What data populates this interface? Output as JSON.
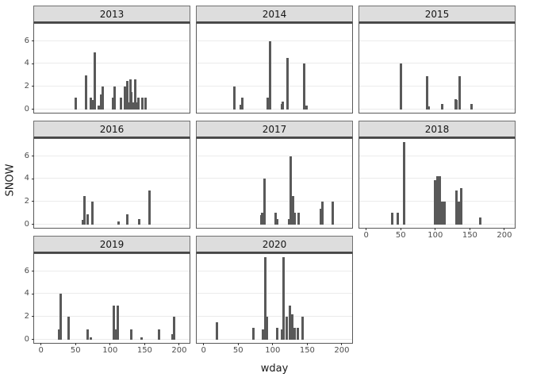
{
  "figure": {
    "x_axis_title": "wday",
    "y_axis_title": "SNOW"
  },
  "colors": {
    "bar": "#595959",
    "strip_fill": "#dddddd",
    "panel_border": "#595959",
    "gridline": "#ebebeb",
    "axis_text": "#4d4d4d",
    "title_text": "#1a1a1a",
    "background": "#ffffff"
  },
  "chart_data": {
    "type": "bar",
    "title": "",
    "xlabel": "wday",
    "ylabel": "SNOW",
    "x_ticks": [
      0,
      50,
      100,
      150,
      200
    ],
    "y_ticks": [
      0,
      2,
      4,
      6
    ],
    "xlim": [
      -10,
      215
    ],
    "ylim": [
      -0.3,
      7.5
    ],
    "grid": "horizontal-major-only",
    "legend": "none",
    "facet_layout": "3 columns x 3 rows, last cell empty",
    "facets": [
      {
        "year": "2013",
        "show_y": true,
        "show_x": false,
        "bars": [
          [
            50,
            1
          ],
          [
            65,
            3
          ],
          [
            72,
            1
          ],
          [
            74,
            0.8
          ],
          [
            78,
            5
          ],
          [
            83,
            0.3
          ],
          [
            87,
            1.3
          ],
          [
            89,
            2
          ],
          [
            104,
            1
          ],
          [
            107,
            2
          ],
          [
            116,
            1
          ],
          [
            121,
            2
          ],
          [
            125,
            2.5
          ],
          [
            127,
            0.6
          ],
          [
            129,
            2.6
          ],
          [
            131,
            1.5
          ],
          [
            134,
            0.6
          ],
          [
            136,
            2.6
          ],
          [
            139,
            0.6
          ],
          [
            141,
            1
          ],
          [
            147,
            1
          ],
          [
            151,
            1
          ]
        ]
      },
      {
        "year": "2014",
        "show_y": false,
        "show_x": false,
        "bars": [
          [
            45,
            2
          ],
          [
            54,
            0.4
          ],
          [
            56,
            1
          ],
          [
            93,
            1
          ],
          [
            96,
            6
          ],
          [
            113,
            0.5
          ],
          [
            115,
            0.7
          ],
          [
            121,
            4.5
          ],
          [
            146,
            4
          ],
          [
            149,
            0.3
          ]
        ]
      },
      {
        "year": "2015",
        "show_y": false,
        "show_x": false,
        "bars": [
          [
            50,
            4
          ],
          [
            88,
            2.9
          ],
          [
            91,
            0.25
          ],
          [
            110,
            0.5
          ],
          [
            129,
            0.9
          ],
          [
            131,
            0.8
          ],
          [
            135,
            2.9
          ],
          [
            152,
            0.5
          ]
        ]
      },
      {
        "year": "2016",
        "show_y": true,
        "show_x": false,
        "bars": [
          [
            61,
            0.4
          ],
          [
            63,
            2.5
          ],
          [
            68,
            0.9
          ],
          [
            74,
            2
          ],
          [
            112,
            0.25
          ],
          [
            125,
            0.9
          ],
          [
            142,
            0.5
          ],
          [
            157,
            3
          ]
        ]
      },
      {
        "year": "2017",
        "show_y": false,
        "show_x": false,
        "bars": [
          [
            83,
            0.8
          ],
          [
            85,
            1
          ],
          [
            88,
            4
          ],
          [
            104,
            1
          ],
          [
            106,
            0.5
          ],
          [
            124,
            0.5
          ],
          [
            126,
            6
          ],
          [
            129,
            2.5
          ],
          [
            132,
            1
          ],
          [
            137,
            1
          ],
          [
            170,
            1.4
          ],
          [
            172,
            2
          ],
          [
            187,
            2
          ]
        ]
      },
      {
        "year": "2018",
        "show_y": false,
        "show_x": true,
        "bars": [
          [
            38,
            1
          ],
          [
            46,
            1
          ],
          [
            55,
            7.2
          ],
          [
            100,
            3.9
          ],
          [
            103,
            4.2
          ],
          [
            106,
            4.2
          ],
          [
            108,
            1.1
          ],
          [
            110,
            2
          ],
          [
            113,
            2
          ],
          [
            131,
            3
          ],
          [
            134,
            2
          ],
          [
            137,
            3.2
          ],
          [
            165,
            0.6
          ]
        ]
      },
      {
        "year": "2019",
        "show_y": true,
        "show_x": true,
        "bars": [
          [
            26,
            0.9
          ],
          [
            28,
            4
          ],
          [
            40,
            2
          ],
          [
            68,
            0.9
          ],
          [
            72,
            0.2
          ],
          [
            105,
            3
          ],
          [
            108,
            0.9
          ],
          [
            111,
            3
          ],
          [
            131,
            0.9
          ],
          [
            146,
            0.2
          ],
          [
            171,
            0.9
          ],
          [
            190,
            0.5
          ],
          [
            193,
            2
          ]
        ]
      },
      {
        "year": "2020",
        "show_y": false,
        "show_x": true,
        "bars": [
          [
            19,
            1.5
          ],
          [
            72,
            1
          ],
          [
            86,
            0.9
          ],
          [
            89,
            7.2
          ],
          [
            92,
            2
          ],
          [
            106,
            1
          ],
          [
            113,
            0.9
          ],
          [
            116,
            7.2
          ],
          [
            120,
            2
          ],
          [
            125,
            3
          ],
          [
            128,
            2.2
          ],
          [
            132,
            1
          ],
          [
            136,
            1
          ],
          [
            143,
            2
          ]
        ]
      }
    ]
  }
}
